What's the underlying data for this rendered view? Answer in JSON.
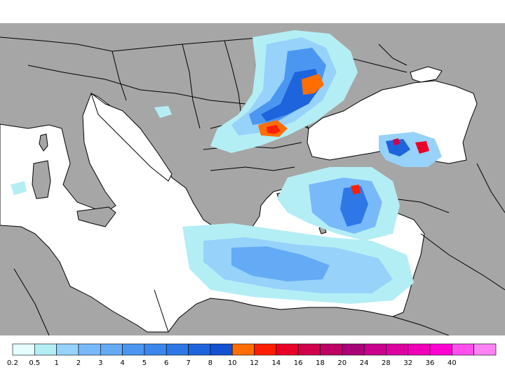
{
  "map": {
    "region": "Mediterranean and Black Sea",
    "colors": {
      "land": "#a6a6a6",
      "sea": "#ffffff",
      "border": "#000000"
    }
  },
  "legend": {
    "levels": [
      {
        "label": "0.2",
        "color": "#e6ffff"
      },
      {
        "label": "0.5",
        "color": "#b4eef5"
      },
      {
        "label": "1",
        "color": "#96d2fa"
      },
      {
        "label": "2",
        "color": "#78b9fa"
      },
      {
        "label": "3",
        "color": "#64aaf5"
      },
      {
        "label": "4",
        "color": "#4b96f0"
      },
      {
        "label": "5",
        "color": "#3c87eb"
      },
      {
        "label": "6",
        "color": "#2d78e6"
      },
      {
        "label": "7",
        "color": "#1e64dc"
      },
      {
        "label": "8",
        "color": "#1450d2"
      },
      {
        "label": "10",
        "color": "#ff6e00"
      },
      {
        "label": "12",
        "color": "#ff1e00"
      },
      {
        "label": "14",
        "color": "#eb0028"
      },
      {
        "label": "16",
        "color": "#d2004b"
      },
      {
        "label": "18",
        "color": "#be0064"
      },
      {
        "label": "20",
        "color": "#aa0078"
      },
      {
        "label": "24",
        "color": "#c8008c"
      },
      {
        "label": "28",
        "color": "#dc00a0"
      },
      {
        "label": "32",
        "color": "#f000b9"
      },
      {
        "label": "36",
        "color": "#ff00d2"
      },
      {
        "label": "40",
        "color": "#ff50eb"
      },
      {
        "label": "",
        "color": "#ff82f5"
      }
    ]
  }
}
